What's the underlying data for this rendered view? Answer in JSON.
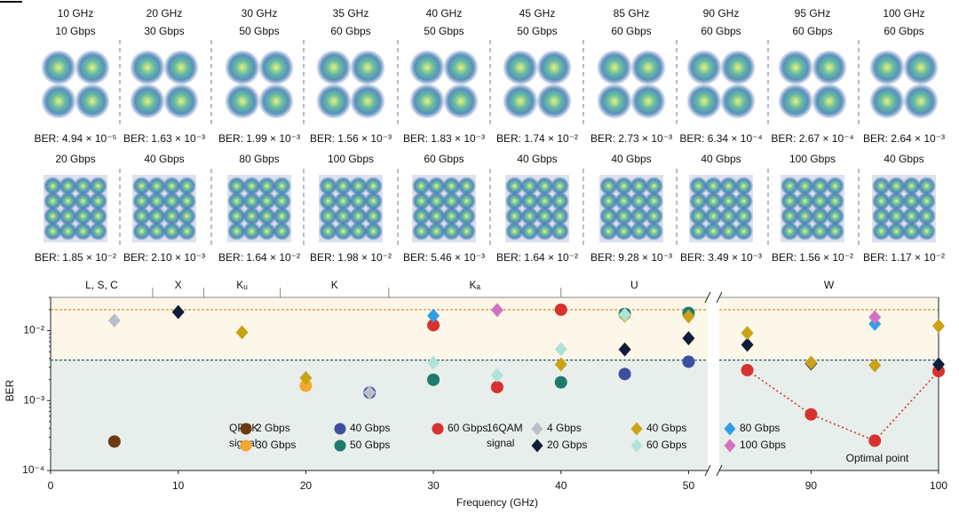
{
  "constellations": {
    "rows": [
      {
        "frequencies": [
          "10 GHz",
          "20 GHz",
          "30 GHz",
          "35 GHz",
          "40 GHz",
          "45 GHz",
          "85 GHz",
          "90 GHz",
          "95 GHz",
          "100 GHz"
        ],
        "rates": [
          "10 Gbps",
          "30 Gbps",
          "50 Gbps",
          "60 Gbps",
          "50 Gbps",
          "50 Gbps",
          "60 Gbps",
          "60 Gbps",
          "60 Gbps",
          "60 Gbps"
        ],
        "bers": [
          "BER: 4.94 × 10⁻⁵",
          "BER: 1.63 × 10⁻³",
          "BER: 1.99 × 10⁻³",
          "BER: 1.56 × 10⁻³",
          "BER: 1.83 × 10⁻³",
          "BER: 1.74 × 10⁻²",
          "BER: 2.73 × 10⁻³",
          "BER: 6.34 × 10⁻⁴",
          "BER: 2.67 × 10⁻⁴",
          "BER: 2.64 × 10⁻³"
        ]
      },
      {
        "rates": [
          "20 Gbps",
          "40 Gbps",
          "80 Gbps",
          "100 Gbps",
          "60 Gbps",
          "40 Gbps",
          "40 Gbps",
          "40 Gbps",
          "100 Gbps",
          "40 Gbps"
        ],
        "bers": [
          "BER: 1.85 × 10⁻²",
          "BER: 2.10 × 10⁻³",
          "BER: 1.64 × 10⁻²",
          "BER: 1.98 × 10⁻²",
          "BER: 5.46 × 10⁻³",
          "BER: 1.64 × 10⁻²",
          "BER: 9.28 × 10⁻³",
          "BER: 3.49 × 10⁻³",
          "BER: 1.56 × 10⁻²",
          "BER: 1.17 × 10⁻²"
        ]
      }
    ]
  },
  "chart_data": {
    "type": "scatter",
    "x_label": "Frequency (GHz)",
    "y_label": "BER",
    "xlim": [
      0,
      100
    ],
    "x_break": [
      51.5,
      82.8
    ],
    "xticks": [
      0,
      10,
      20,
      30,
      40,
      50,
      90,
      100
    ],
    "ylim": [
      0.0001,
      0.03
    ],
    "log_y": true,
    "yticks": [
      {
        "value": 0.0001,
        "label": "10⁻⁴"
      },
      {
        "value": 0.001,
        "label": "10⁻³"
      },
      {
        "value": 0.01,
        "label": "10⁻²"
      }
    ],
    "bands": {
      "names": [
        "L, S, C",
        "X",
        "Kᵤ",
        "K",
        "Kₐ",
        "U",
        "W"
      ],
      "edges": [
        8,
        12,
        18,
        26.5,
        40
      ]
    },
    "thresholds": [
      {
        "value": 0.02,
        "color": "#d9922a"
      },
      {
        "value": 0.0038,
        "color": "#245f66"
      }
    ],
    "annotation": "Optimal point",
    "groups": [
      {
        "title": [
          "QPSK",
          "signal"
        ],
        "marker": "circle",
        "series": [
          {
            "name": "2 Gbps",
            "color": "#6b3a12",
            "x": [
              5
            ],
            "values": [
              0.00026
            ]
          },
          {
            "name": "30 Gbps",
            "color": "#f5a830",
            "x": [
              20
            ],
            "values": [
              0.00163
            ]
          },
          {
            "name": "40 Gbps",
            "color": "#3d4f9f",
            "x": [
              25,
              45,
              50
            ],
            "values": [
              0.0013,
              0.0024,
              0.0036
            ]
          },
          {
            "name": "50 Gbps",
            "color": "#1e7b6c",
            "x": [
              30,
              40,
              45,
              50
            ],
            "values": [
              0.00199,
              0.00183,
              0.0174,
              0.018
            ]
          },
          {
            "name": "60 Gbps",
            "color": "#d7322f",
            "x": [
              30,
              35,
              40,
              85,
              90,
              95,
              100
            ],
            "values": [
              0.012,
              0.00156,
              0.02,
              0.00273,
              0.000634,
              0.000267,
              0.00264
            ]
          }
        ]
      },
      {
        "title": [
          "16QAM",
          "signal"
        ],
        "marker": "diamond",
        "series": [
          {
            "name": "4 Gbps",
            "color": "#b9c0c8",
            "x": [
              5,
              25
            ],
            "values": [
              0.014,
              0.0013
            ]
          },
          {
            "name": "20 Gbps",
            "color": "#101c3c",
            "x": [
              10,
              45,
              50,
              85,
              90,
              100
            ],
            "values": [
              0.0185,
              0.0054,
              0.0078,
              0.0063,
              0.0034,
              0.0033
            ]
          },
          {
            "name": "40 Gbps",
            "color": "#c9a216",
            "x": [
              15,
              20,
              40,
              45,
              50,
              85,
              90,
              95,
              100
            ],
            "values": [
              0.0095,
              0.0021,
              0.0033,
              0.0164,
              0.016,
              0.00928,
              0.00349,
              0.0032,
              0.0117
            ]
          },
          {
            "name": "60 Gbps",
            "color": "#aee3da",
            "x": [
              30,
              35,
              40,
              45
            ],
            "values": [
              0.0035,
              0.0023,
              0.00546,
              0.017
            ]
          },
          {
            "name": "80 Gbps",
            "color": "#2e9fe6",
            "x": [
              30,
              95
            ],
            "values": [
              0.0164,
              0.0125
            ]
          },
          {
            "name": "100 Gbps",
            "color": "#d472c2",
            "x": [
              35,
              95
            ],
            "values": [
              0.0198,
              0.0156
            ]
          }
        ]
      }
    ]
  }
}
